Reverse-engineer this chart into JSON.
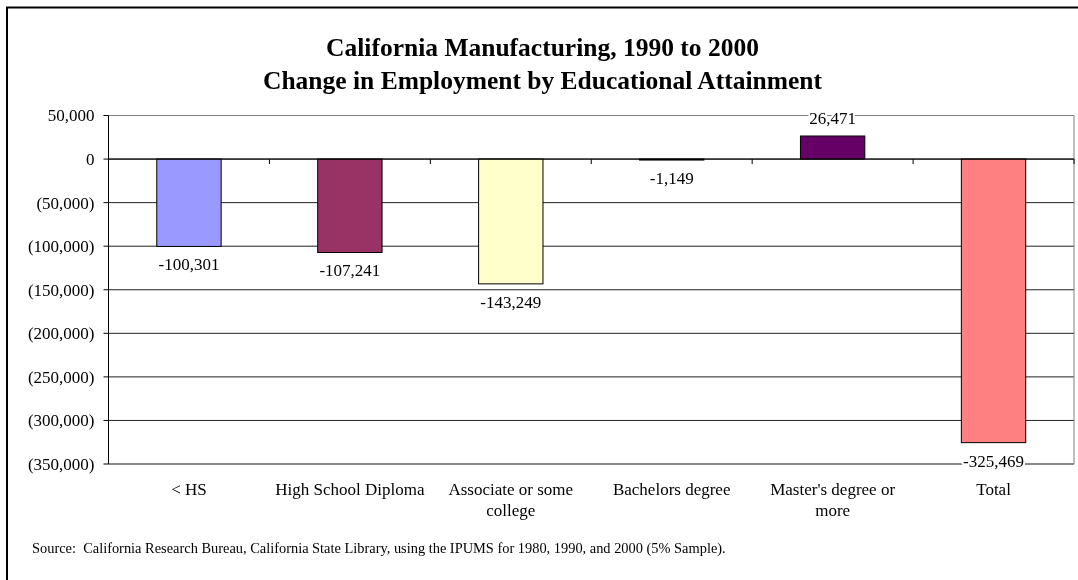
{
  "chart_data": {
    "type": "bar",
    "title": "California Manufacturing, 1990 to 2000",
    "subtitle": "Change in Employment by Educational Attainment",
    "categories": [
      "< HS",
      "High School Diploma",
      "Associate or some college",
      "Bachelors degree",
      "Master's degree or more",
      "Total"
    ],
    "values": [
      -100301,
      -107241,
      -143249,
      -1149,
      26471,
      -325469
    ],
    "colors": [
      "#9999ff",
      "#993366",
      "#ffffcc",
      "#ccffff",
      "#660066",
      "#ff8080"
    ],
    "value_labels": [
      "-100,301",
      "-107,241",
      "-143,249",
      "-1,149",
      "26,471",
      "-325,469"
    ],
    "ylim": [
      -350000,
      50000
    ],
    "yticks": [
      {
        "value": 50000,
        "label": "50,000"
      },
      0,
      {
        "value": -50000,
        "label": "(50,000)"
      },
      {
        "value": -100000,
        "label": "(100,000)"
      },
      {
        "value": -150000,
        "label": "(150,000)"
      },
      {
        "value": -200000,
        "label": "(200,000)"
      },
      {
        "value": -250000,
        "label": "(250,000)"
      },
      {
        "value": -300000,
        "label": "(300,000)"
      },
      {
        "value": -350000,
        "label": "(350,000)"
      }
    ],
    "grid": "y",
    "annotations": [
      "Source:  California Research Bureau, California State Library, using the IPUMS for 1980, 1990, and 2000 (5% Sample)."
    ]
  }
}
